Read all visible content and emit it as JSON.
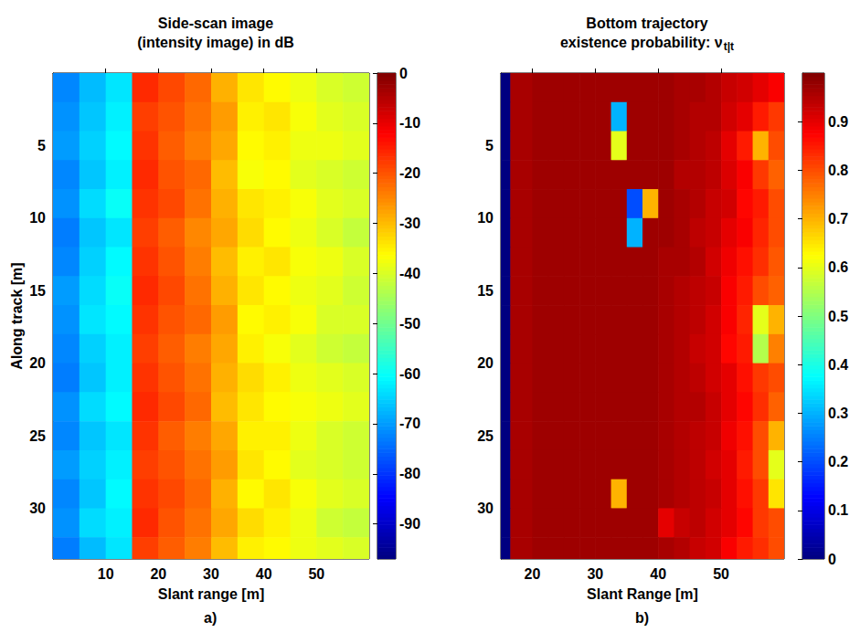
{
  "chart_data": [
    {
      "type": "heatmap",
      "title": "Side-scan image\n(intensity image) in dB",
      "xlabel": "Slant range [m]",
      "ylabel": "Along track [m]",
      "label": "a)",
      "xlim": [
        0,
        60
      ],
      "ylim": [
        0,
        33.5
      ],
      "xticks": [
        10,
        20,
        30,
        40,
        50
      ],
      "yticks": [
        5,
        10,
        15,
        20,
        25,
        30
      ],
      "x_edges": [
        0,
        5,
        10,
        15,
        20,
        25,
        30,
        35,
        40,
        45,
        50,
        55,
        60
      ],
      "y_edges": [
        0,
        2,
        4,
        6,
        8,
        10,
        12,
        14,
        16,
        18,
        20,
        22,
        24,
        26,
        28,
        30,
        32,
        33.5
      ],
      "cells": [
        [
          -72,
          -67,
          -63,
          -16,
          -19,
          -22,
          -29,
          -34,
          -36,
          -38,
          -40,
          -41
        ],
        [
          -71,
          -66,
          -62,
          -18,
          -20,
          -23,
          -27,
          -35,
          -34,
          -37,
          -39,
          -40
        ],
        [
          -70,
          -65,
          -61,
          -17,
          -21,
          -24,
          -28,
          -36,
          -35,
          -38,
          -38,
          -39
        ],
        [
          -72,
          -66,
          -62,
          -16,
          -20,
          -22,
          -30,
          -37,
          -36,
          -39,
          -40,
          -41
        ],
        [
          -71,
          -64,
          -60,
          -17,
          -19,
          -23,
          -29,
          -34,
          -35,
          -37,
          -39,
          -40
        ],
        [
          -73,
          -66,
          -63,
          -18,
          -21,
          -25,
          -28,
          -33,
          -36,
          -38,
          -40,
          -42
        ],
        [
          -72,
          -65,
          -61,
          -17,
          -20,
          -24,
          -30,
          -35,
          -34,
          -37,
          -38,
          -40
        ],
        [
          -70,
          -64,
          -60,
          -16,
          -19,
          -23,
          -29,
          -34,
          -36,
          -38,
          -39,
          -41
        ],
        [
          -71,
          -63,
          -61,
          -17,
          -20,
          -22,
          -27,
          -36,
          -35,
          -37,
          -40,
          -40
        ],
        [
          -72,
          -65,
          -62,
          -18,
          -21,
          -24,
          -28,
          -35,
          -37,
          -39,
          -41,
          -42
        ],
        [
          -73,
          -66,
          -62,
          -17,
          -20,
          -23,
          -29,
          -33,
          -35,
          -38,
          -39,
          -40
        ],
        [
          -71,
          -64,
          -61,
          -16,
          -19,
          -22,
          -30,
          -34,
          -36,
          -37,
          -38,
          -39
        ],
        [
          -72,
          -66,
          -63,
          -17,
          -21,
          -24,
          -28,
          -35,
          -35,
          -38,
          -40,
          -41
        ],
        [
          -70,
          -65,
          -62,
          -18,
          -20,
          -23,
          -27,
          -34,
          -36,
          -39,
          -40,
          -41
        ],
        [
          -72,
          -66,
          -61,
          -17,
          -19,
          -22,
          -29,
          -36,
          -34,
          -37,
          -39,
          -40
        ],
        [
          -71,
          -64,
          -62,
          -16,
          -20,
          -23,
          -28,
          -33,
          -35,
          -38,
          -41,
          -42
        ],
        [
          -73,
          -67,
          -63,
          -18,
          -21,
          -24,
          -30,
          -35,
          -36,
          -38,
          -39,
          -40
        ]
      ],
      "colorbar": {
        "range": [
          -97,
          0
        ],
        "ticks": [
          0,
          -10,
          -20,
          -30,
          -40,
          -50,
          -60,
          -70,
          -80,
          -90
        ]
      }
    },
    {
      "type": "heatmap",
      "title": "Bottom trajectory\nexistence probability: ν",
      "title_subscript": "t|t",
      "xlabel": "Slant Range [m]",
      "label": "b)",
      "xlim": [
        15,
        60
      ],
      "ylim": [
        0,
        33.5
      ],
      "xticks": [
        20,
        30,
        40,
        50
      ],
      "yticks": [
        5,
        10,
        15,
        20,
        25,
        30
      ],
      "x_edges": [
        15,
        16.5,
        20,
        22.5,
        25,
        27.5,
        30,
        32.5,
        35,
        37.5,
        40,
        42.5,
        45,
        47.5,
        50,
        52.5,
        55,
        57.5,
        60
      ],
      "y_edges": [
        0,
        2,
        4,
        6,
        8,
        10,
        12,
        14,
        16,
        18,
        20,
        22,
        24,
        26,
        28,
        30,
        32,
        33.5
      ],
      "cells": [
        [
          0,
          0.96,
          0.97,
          0.97,
          0.97,
          0.97,
          0.97,
          0.97,
          0.97,
          0.97,
          0.97,
          0.96,
          0.96,
          0.95,
          0.93,
          0.92,
          0.9,
          0.88
        ],
        [
          0,
          0.96,
          0.97,
          0.97,
          0.97,
          0.97,
          0.97,
          0.3,
          0.97,
          0.97,
          0.97,
          0.96,
          0.95,
          0.95,
          0.92,
          0.9,
          0.85,
          0.82
        ],
        [
          0,
          0.96,
          0.97,
          0.97,
          0.97,
          0.97,
          0.97,
          0.6,
          0.97,
          0.97,
          0.97,
          0.96,
          0.95,
          0.94,
          0.9,
          0.85,
          0.7,
          0.8
        ],
        [
          0,
          0.96,
          0.97,
          0.97,
          0.97,
          0.97,
          0.97,
          0.97,
          0.97,
          0.97,
          0.97,
          0.95,
          0.95,
          0.94,
          0.91,
          0.88,
          0.82,
          0.78
        ],
        [
          0,
          0.96,
          0.97,
          0.97,
          0.97,
          0.97,
          0.97,
          0.97,
          0.2,
          0.7,
          0.97,
          0.96,
          0.95,
          0.93,
          0.92,
          0.87,
          0.85,
          0.8
        ],
        [
          0,
          0.96,
          0.97,
          0.97,
          0.97,
          0.97,
          0.97,
          0.97,
          0.3,
          0.97,
          0.97,
          0.96,
          0.94,
          0.93,
          0.9,
          0.88,
          0.84,
          0.8
        ],
        [
          0,
          0.96,
          0.97,
          0.97,
          0.97,
          0.97,
          0.97,
          0.97,
          0.97,
          0.97,
          0.96,
          0.96,
          0.95,
          0.92,
          0.89,
          0.86,
          0.83,
          0.79
        ],
        [
          0,
          0.96,
          0.97,
          0.97,
          0.97,
          0.97,
          0.97,
          0.97,
          0.97,
          0.97,
          0.96,
          0.95,
          0.94,
          0.93,
          0.88,
          0.85,
          0.8,
          0.78
        ],
        [
          0,
          0.96,
          0.97,
          0.97,
          0.97,
          0.97,
          0.97,
          0.97,
          0.97,
          0.97,
          0.96,
          0.95,
          0.94,
          0.92,
          0.88,
          0.84,
          0.6,
          0.7
        ],
        [
          0,
          0.96,
          0.97,
          0.97,
          0.97,
          0.97,
          0.97,
          0.97,
          0.97,
          0.97,
          0.96,
          0.95,
          0.93,
          0.92,
          0.87,
          0.85,
          0.55,
          0.75
        ],
        [
          0,
          0.96,
          0.97,
          0.97,
          0.97,
          0.97,
          0.97,
          0.97,
          0.97,
          0.97,
          0.96,
          0.95,
          0.94,
          0.92,
          0.9,
          0.86,
          0.82,
          0.8
        ],
        [
          0,
          0.96,
          0.97,
          0.97,
          0.97,
          0.97,
          0.97,
          0.97,
          0.97,
          0.97,
          0.96,
          0.95,
          0.95,
          0.93,
          0.9,
          0.87,
          0.83,
          0.78
        ],
        [
          0,
          0.96,
          0.97,
          0.97,
          0.97,
          0.97,
          0.97,
          0.97,
          0.97,
          0.97,
          0.96,
          0.95,
          0.94,
          0.93,
          0.89,
          0.86,
          0.8,
          0.7
        ],
        [
          0,
          0.96,
          0.97,
          0.97,
          0.97,
          0.97,
          0.97,
          0.97,
          0.97,
          0.97,
          0.96,
          0.95,
          0.94,
          0.92,
          0.9,
          0.85,
          0.8,
          0.6
        ],
        [
          0,
          0.96,
          0.97,
          0.97,
          0.97,
          0.97,
          0.97,
          0.7,
          0.97,
          0.97,
          0.96,
          0.95,
          0.94,
          0.93,
          0.9,
          0.86,
          0.82,
          0.65
        ],
        [
          0,
          0.96,
          0.97,
          0.97,
          0.97,
          0.97,
          0.97,
          0.97,
          0.97,
          0.97,
          0.9,
          0.93,
          0.94,
          0.92,
          0.9,
          0.87,
          0.82,
          0.8
        ],
        [
          0,
          0.96,
          0.97,
          0.97,
          0.97,
          0.97,
          0.97,
          0.97,
          0.97,
          0.97,
          0.96,
          0.95,
          0.93,
          0.92,
          0.88,
          0.85,
          0.83,
          0.8
        ]
      ],
      "colorbar": {
        "range": [
          0,
          1
        ],
        "ticks": [
          0,
          0.1,
          0.2,
          0.3,
          0.4,
          0.5,
          0.6,
          0.7,
          0.8,
          0.9
        ]
      }
    }
  ]
}
